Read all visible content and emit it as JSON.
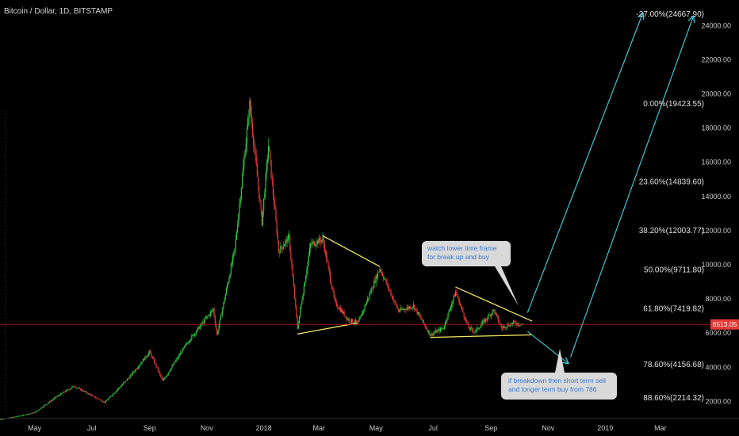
{
  "title": "Bitcoin / Dollar, 1D, BITSTAMP",
  "colors": {
    "background": "#000000",
    "up": "#2ecc40",
    "down": "#e53935",
    "trendline": "#f5e663",
    "projection": "#3fc6d6",
    "current_price_line": "#b71c1c",
    "current_price_tag": "#e53935",
    "note_bg": "#d9d9d9"
  },
  "chart_data": {
    "type": "candlestick",
    "x_ticks": [
      "May",
      "Jul",
      "Sep",
      "Nov",
      "2018",
      "Mar",
      "May",
      "Jul",
      "Sep",
      "Nov",
      "2019",
      "Mar"
    ],
    "x_tick_dates": [
      "2017-05-01",
      "2017-07-01",
      "2017-09-01",
      "2017-11-01",
      "2018-01-01",
      "2018-03-01",
      "2018-05-01",
      "2018-07-01",
      "2018-09-01",
      "2018-11-01",
      "2019-01-01",
      "2019-03-01"
    ],
    "y_ticks": [
      "2000.00",
      "4000.00",
      "6000.00",
      "8000.00",
      "10000.00",
      "12000.00",
      "14000.00",
      "16000.00",
      "18000.00",
      "20000.00",
      "22000.00",
      "24000.00"
    ],
    "y_tick_values": [
      2000,
      4000,
      6000,
      8000,
      10000,
      12000,
      14000,
      16000,
      18000,
      20000,
      22000,
      24000
    ],
    "ylim": [
      1000,
      25500
    ],
    "xlim": [
      "2017-03-25",
      "2019-04-10"
    ],
    "current_price": {
      "label": "6513.05",
      "value": 6513.05
    },
    "fib_levels": [
      {
        "label": "-27.00%(24667.90)",
        "value": 24667.9
      },
      {
        "label": "0.00%(19423.55)",
        "value": 19423.55
      },
      {
        "label": "23.60%(14839.60)",
        "value": 14839.6
      },
      {
        "label": "38.20%(12003.77)",
        "value": 12003.77
      },
      {
        "label": "50.00%(9711.80)",
        "value": 9711.8
      },
      {
        "label": "61.80%(7419.82)",
        "value": 7419.82
      },
      {
        "label": "78.60%(4156.68)",
        "value": 4156.68
      },
      {
        "label": "88.60%(2214.32)",
        "value": 2214.32
      }
    ],
    "price_path": [
      [
        "2017-03-25",
        950
      ],
      [
        "2017-04-15",
        1150
      ],
      [
        "2017-05-01",
        1350
      ],
      [
        "2017-05-25",
        2300
      ],
      [
        "2017-06-12",
        2900
      ],
      [
        "2017-07-15",
        1950
      ],
      [
        "2017-08-10",
        3400
      ],
      [
        "2017-09-01",
        4900
      ],
      [
        "2017-09-15",
        3200
      ],
      [
        "2017-10-12",
        5500
      ],
      [
        "2017-11-08",
        7400
      ],
      [
        "2017-11-12",
        5900
      ],
      [
        "2017-12-01",
        10900
      ],
      [
        "2017-12-17",
        19400
      ],
      [
        "2017-12-30",
        12500
      ],
      [
        "2018-01-06",
        17000
      ],
      [
        "2018-01-17",
        10800
      ],
      [
        "2018-01-28",
        11600
      ],
      [
        "2018-02-06",
        6300
      ],
      [
        "2018-02-20",
        11200
      ],
      [
        "2018-03-05",
        11500
      ],
      [
        "2018-03-18",
        7800
      ],
      [
        "2018-04-01",
        6800
      ],
      [
        "2018-04-12",
        6600
      ],
      [
        "2018-05-05",
        9800
      ],
      [
        "2018-05-25",
        7300
      ],
      [
        "2018-06-10",
        7600
      ],
      [
        "2018-06-28",
        5900
      ],
      [
        "2018-07-12",
        6300
      ],
      [
        "2018-07-25",
        8400
      ],
      [
        "2018-08-08",
        6300
      ],
      [
        "2018-08-15",
        6100
      ],
      [
        "2018-09-04",
        7350
      ],
      [
        "2018-09-12",
        6300
      ],
      [
        "2018-09-25",
        6600
      ],
      [
        "2018-10-05",
        6513
      ]
    ],
    "trendlines": [
      {
        "from": [
          "2018-02-06",
          5950
        ],
        "to": [
          "2018-04-12",
          6600
        ]
      },
      {
        "from": [
          "2018-03-05",
          11700
        ],
        "to": [
          "2018-05-05",
          9900
        ]
      },
      {
        "from": [
          "2018-06-28",
          5750
        ],
        "to": [
          "2018-10-15",
          5900
        ]
      },
      {
        "from": [
          "2018-07-25",
          8700
        ],
        "to": [
          "2018-10-15",
          6700
        ]
      }
    ],
    "projections": [
      {
        "from": [
          "2018-10-10",
          7200
        ],
        "to": [
          "2019-02-10",
          24700
        ]
      },
      {
        "from": [
          "2018-10-10",
          6100
        ],
        "to": [
          "2018-11-22",
          4250
        ]
      },
      {
        "from": [
          "2018-11-25",
          4600
        ],
        "to": [
          "2019-04-05",
          24500
        ]
      }
    ]
  },
  "notes": {
    "note1_line1": "watch lower time frame",
    "note1_line2": "for break up and buy",
    "note2_line1": "if breakdown then short term sell",
    "note2_line2": "and longer term buy from 786"
  }
}
